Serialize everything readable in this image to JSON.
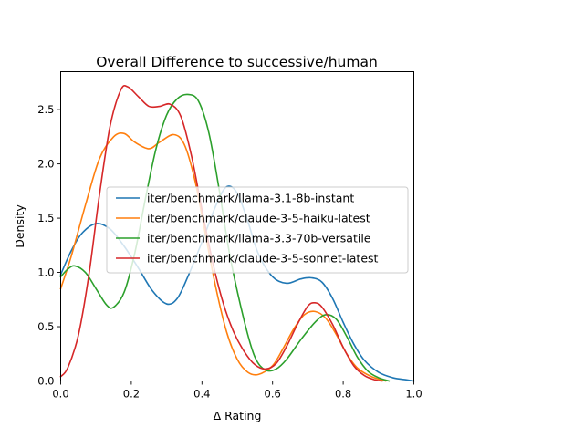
{
  "chart_data": {
    "type": "line",
    "title": "Overall Difference to successive/human",
    "xlabel": "Δ Rating",
    "ylabel": "Density",
    "xlim": [
      0.0,
      1.0
    ],
    "ylim": [
      0.0,
      2.85
    ],
    "x_ticks": [
      0.0,
      0.2,
      0.4,
      0.6,
      0.8,
      1.0
    ],
    "x_tick_labels": [
      "0.0",
      "0.2",
      "0.4",
      "0.6",
      "0.8",
      "1.0"
    ],
    "y_ticks": [
      0.0,
      0.5,
      1.0,
      1.5,
      2.0,
      2.5
    ],
    "y_tick_labels": [
      "0.0",
      "0.5",
      "1.0",
      "1.5",
      "2.0",
      "2.5"
    ],
    "grid": false,
    "legend_position": "center-right",
    "series": [
      {
        "name": "iter/benchmark/llama-3.1-8b-instant",
        "color": "#1f77b4",
        "points": [
          [
            0.0,
            0.98
          ],
          [
            0.03,
            1.2
          ],
          [
            0.06,
            1.36
          ],
          [
            0.1,
            1.45
          ],
          [
            0.14,
            1.4
          ],
          [
            0.18,
            1.24
          ],
          [
            0.22,
            1.04
          ],
          [
            0.26,
            0.83
          ],
          [
            0.3,
            0.71
          ],
          [
            0.33,
            0.76
          ],
          [
            0.36,
            0.96
          ],
          [
            0.4,
            1.28
          ],
          [
            0.44,
            1.62
          ],
          [
            0.47,
            1.79
          ],
          [
            0.5,
            1.73
          ],
          [
            0.53,
            1.47
          ],
          [
            0.56,
            1.17
          ],
          [
            0.6,
            0.96
          ],
          [
            0.64,
            0.9
          ],
          [
            0.68,
            0.94
          ],
          [
            0.71,
            0.95
          ],
          [
            0.74,
            0.91
          ],
          [
            0.77,
            0.76
          ],
          [
            0.8,
            0.54
          ],
          [
            0.83,
            0.34
          ],
          [
            0.86,
            0.19
          ],
          [
            0.9,
            0.08
          ],
          [
            0.94,
            0.03
          ],
          [
            0.98,
            0.01
          ],
          [
            1.0,
            0.0
          ]
        ]
      },
      {
        "name": "iter/benchmark/claude-3-5-haiku-latest",
        "color": "#ff7f0e",
        "points": [
          [
            0.0,
            0.85
          ],
          [
            0.03,
            1.15
          ],
          [
            0.07,
            1.62
          ],
          [
            0.11,
            2.05
          ],
          [
            0.15,
            2.25
          ],
          [
            0.18,
            2.28
          ],
          [
            0.21,
            2.2
          ],
          [
            0.25,
            2.14
          ],
          [
            0.28,
            2.2
          ],
          [
            0.32,
            2.27
          ],
          [
            0.35,
            2.18
          ],
          [
            0.38,
            1.85
          ],
          [
            0.41,
            1.35
          ],
          [
            0.44,
            0.85
          ],
          [
            0.47,
            0.45
          ],
          [
            0.5,
            0.2
          ],
          [
            0.53,
            0.08
          ],
          [
            0.56,
            0.06
          ],
          [
            0.6,
            0.14
          ],
          [
            0.63,
            0.3
          ],
          [
            0.66,
            0.48
          ],
          [
            0.69,
            0.61
          ],
          [
            0.72,
            0.64
          ],
          [
            0.75,
            0.58
          ],
          [
            0.78,
            0.43
          ],
          [
            0.81,
            0.25
          ],
          [
            0.84,
            0.12
          ],
          [
            0.88,
            0.04
          ],
          [
            0.92,
            0.0
          ]
        ]
      },
      {
        "name": "iter/benchmark/llama-3.3-70b-versatile",
        "color": "#2ca02c",
        "points": [
          [
            0.0,
            0.96
          ],
          [
            0.02,
            1.03
          ],
          [
            0.04,
            1.06
          ],
          [
            0.07,
            1.0
          ],
          [
            0.1,
            0.85
          ],
          [
            0.13,
            0.7
          ],
          [
            0.15,
            0.68
          ],
          [
            0.18,
            0.82
          ],
          [
            0.21,
            1.18
          ],
          [
            0.24,
            1.68
          ],
          [
            0.27,
            2.14
          ],
          [
            0.3,
            2.45
          ],
          [
            0.33,
            2.6
          ],
          [
            0.36,
            2.64
          ],
          [
            0.39,
            2.58
          ],
          [
            0.42,
            2.28
          ],
          [
            0.45,
            1.74
          ],
          [
            0.48,
            1.14
          ],
          [
            0.52,
            0.55
          ],
          [
            0.55,
            0.22
          ],
          [
            0.58,
            0.1
          ],
          [
            0.61,
            0.11
          ],
          [
            0.64,
            0.2
          ],
          [
            0.68,
            0.38
          ],
          [
            0.72,
            0.54
          ],
          [
            0.75,
            0.61
          ],
          [
            0.78,
            0.57
          ],
          [
            0.81,
            0.41
          ],
          [
            0.84,
            0.22
          ],
          [
            0.87,
            0.09
          ],
          [
            0.9,
            0.03
          ],
          [
            0.93,
            0.0
          ]
        ]
      },
      {
        "name": "iter/benchmark/claude-3-5-sonnet-latest",
        "color": "#d62728",
        "points": [
          [
            0.0,
            0.04
          ],
          [
            0.02,
            0.12
          ],
          [
            0.05,
            0.42
          ],
          [
            0.08,
            0.98
          ],
          [
            0.11,
            1.72
          ],
          [
            0.14,
            2.35
          ],
          [
            0.17,
            2.68
          ],
          [
            0.19,
            2.71
          ],
          [
            0.22,
            2.62
          ],
          [
            0.25,
            2.53
          ],
          [
            0.28,
            2.53
          ],
          [
            0.31,
            2.55
          ],
          [
            0.34,
            2.44
          ],
          [
            0.37,
            2.08
          ],
          [
            0.4,
            1.58
          ],
          [
            0.43,
            1.1
          ],
          [
            0.46,
            0.72
          ],
          [
            0.49,
            0.45
          ],
          [
            0.52,
            0.27
          ],
          [
            0.55,
            0.15
          ],
          [
            0.58,
            0.11
          ],
          [
            0.61,
            0.16
          ],
          [
            0.64,
            0.32
          ],
          [
            0.67,
            0.52
          ],
          [
            0.7,
            0.69
          ],
          [
            0.72,
            0.72
          ],
          [
            0.74,
            0.68
          ],
          [
            0.77,
            0.52
          ],
          [
            0.8,
            0.31
          ],
          [
            0.83,
            0.14
          ],
          [
            0.86,
            0.05
          ],
          [
            0.89,
            0.01
          ],
          [
            0.91,
            0.0
          ]
        ]
      }
    ]
  }
}
